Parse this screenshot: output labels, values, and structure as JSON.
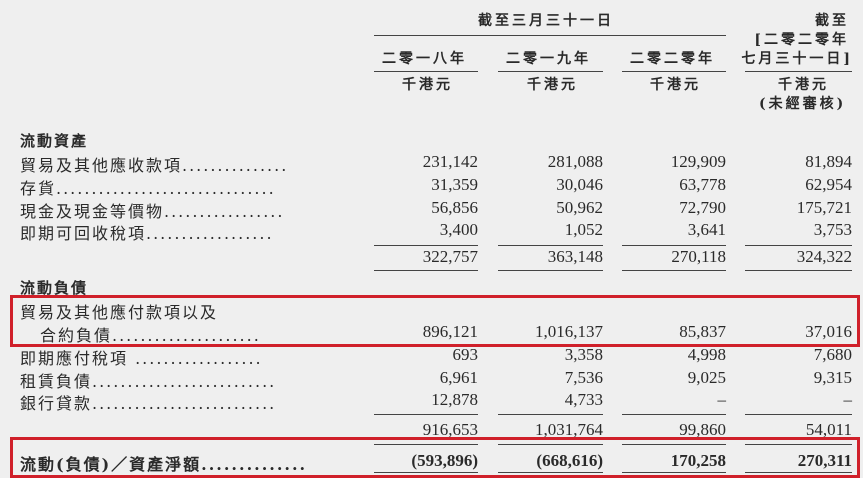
{
  "header": {
    "period_group": "截至三月三十一日",
    "interim_title_1": "截至",
    "interim_title_2": "[二零二零年",
    "interim_title_3": "七月三十一日]",
    "columns": [
      "二零一八年",
      "二零一九年",
      "二零二零年"
    ],
    "unit": "千港元",
    "unaudited": "(未經審核)"
  },
  "current_assets": {
    "title": "流動資產",
    "rows": [
      {
        "label": "貿易及其他應收款項...............",
        "values": [
          "231,142",
          "281,088",
          "129,909",
          "81,894"
        ]
      },
      {
        "label": "存貨...............................",
        "values": [
          "31,359",
          "30,046",
          "63,778",
          "62,954"
        ]
      },
      {
        "label": "現金及現金等價物.................",
        "values": [
          "56,856",
          "50,962",
          "72,790",
          "175,721"
        ]
      },
      {
        "label": "即期可回收稅項..................",
        "values": [
          "3,400",
          "1,052",
          "3,641",
          "3,753"
        ]
      }
    ],
    "total": [
      "322,757",
      "363,148",
      "270,118",
      "324,322"
    ]
  },
  "current_liabilities": {
    "title": "流動負債",
    "rows": [
      {
        "label": "貿易及其他應付款項以及",
        "label2": "合約負債.....................",
        "values": [
          "896,121",
          "1,016,137",
          "85,837",
          "37,016"
        ]
      },
      {
        "label": "即期應付稅項 ..................",
        "values": [
          "693",
          "3,358",
          "4,998",
          "7,680"
        ]
      },
      {
        "label": "租賃負債..........................",
        "values": [
          "6,961",
          "7,536",
          "9,025",
          "9,315"
        ]
      },
      {
        "label": "銀行貸款..........................",
        "values": [
          "12,878",
          "4,733",
          "–",
          "–"
        ]
      }
    ],
    "total": [
      "916,653",
      "1,031,764",
      "99,860",
      "54,011"
    ]
  },
  "net": {
    "label": "流動(負債)／資產淨額..............",
    "values": [
      "(593,896)",
      "(668,616)",
      "170,258",
      "270,311"
    ]
  },
  "highlight_color": "#d0202a"
}
